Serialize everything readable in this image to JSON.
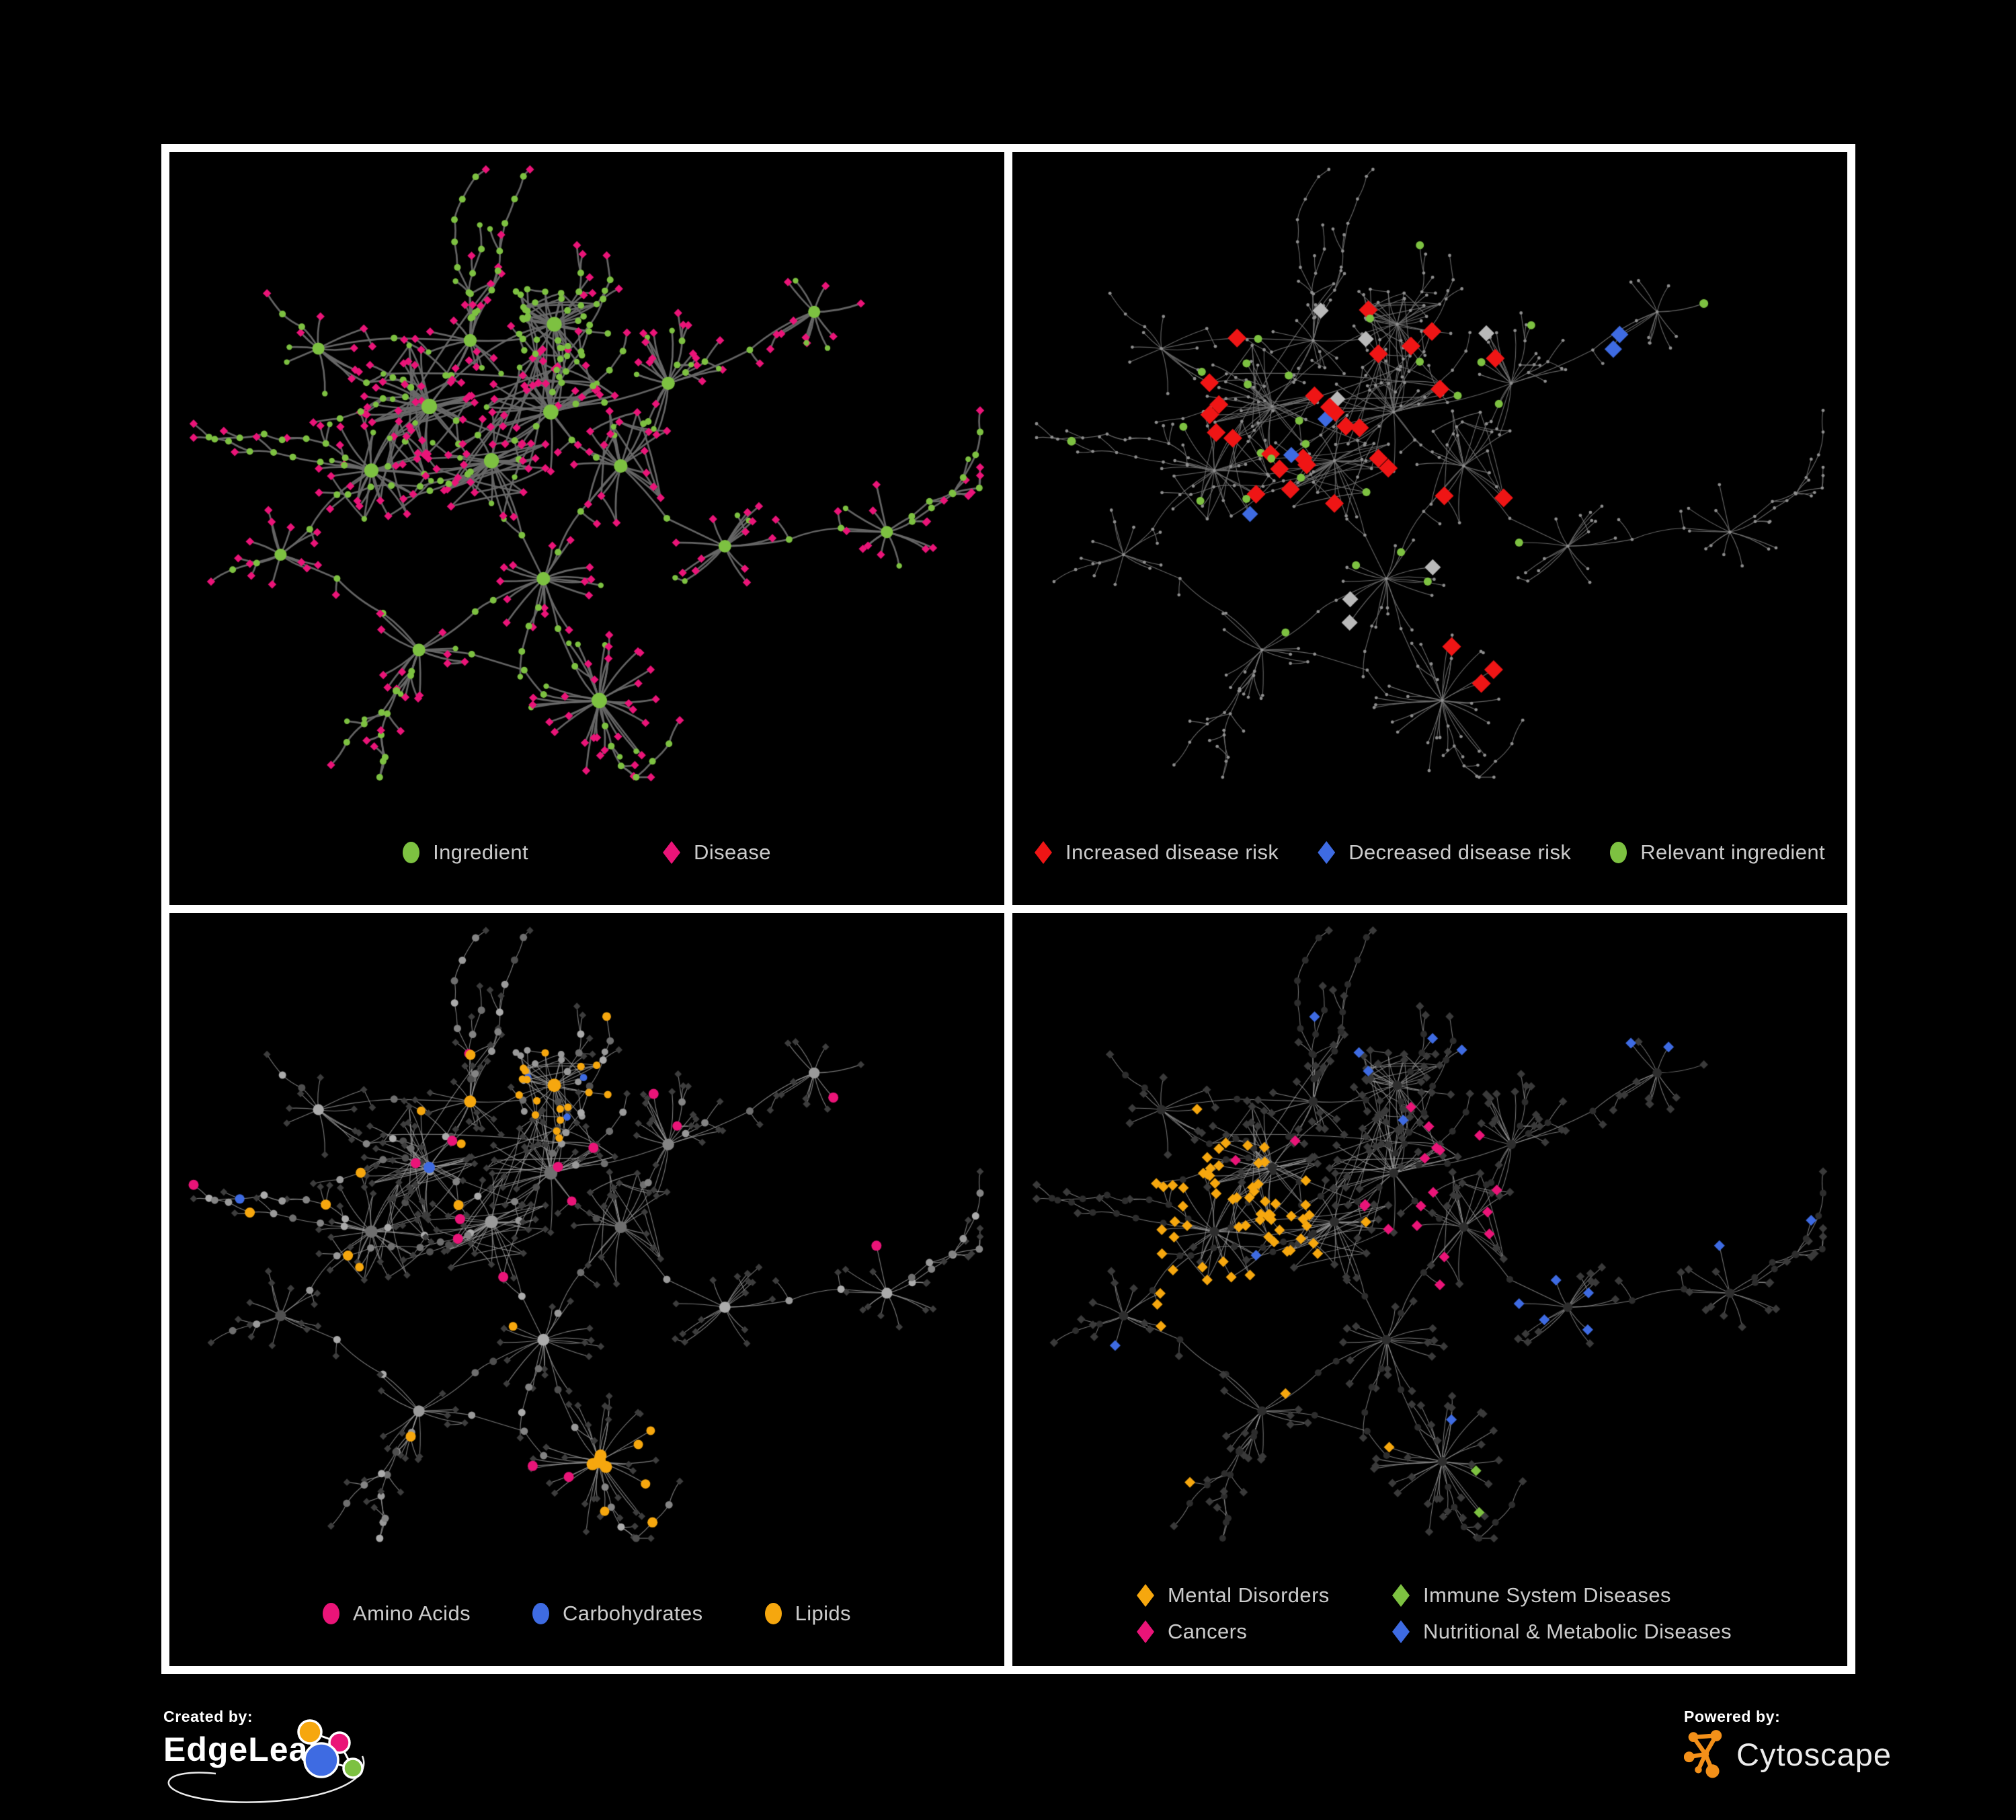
{
  "canvas": {
    "background": "#000000",
    "frame_color": "#ffffff"
  },
  "footer": {
    "created_by": "Created by:",
    "brand_left": "EdgeLeap",
    "powered_by": "Powered by:",
    "brand_right": "Cytoscape",
    "cytoscape_orange": "#f39019",
    "edgeleap_glyph_colors": {
      "amber": "#f6a70e",
      "pink": "#ea1478",
      "blue": "#3e6be2",
      "green": "#7dc141"
    }
  },
  "panels": [
    {
      "id": "ingredient-disease",
      "legend": [
        {
          "label": "Ingredient",
          "color": "#7dc141",
          "shape": "ellipse"
        },
        {
          "label": "Disease",
          "color": "#ea1478",
          "shape": "diamond"
        }
      ]
    },
    {
      "id": "disease-risk",
      "legend": [
        {
          "label": "Increased disease risk",
          "color": "#ef1515",
          "shape": "diamond"
        },
        {
          "label": "Decreased disease risk",
          "color": "#3e6be2",
          "shape": "diamond"
        },
        {
          "label": "Relevant ingredient",
          "color": "#7dc141",
          "shape": "ellipse"
        }
      ]
    },
    {
      "id": "chemical-classes",
      "legend": [
        {
          "label": "Amino Acids",
          "color": "#ea1478",
          "shape": "ellipse"
        },
        {
          "label": "Carbohydrates",
          "color": "#3e6be2",
          "shape": "ellipse"
        },
        {
          "label": "Lipids",
          "color": "#f6a70e",
          "shape": "ellipse"
        }
      ]
    },
    {
      "id": "disease-categories",
      "legend": [
        {
          "label": "Mental Disorders",
          "color": "#f6a70e",
          "shape": "diamond"
        },
        {
          "label": "Immune System Diseases",
          "color": "#7dc141",
          "shape": "diamond"
        },
        {
          "label": "Cancers",
          "color": "#ea1478",
          "shape": "diamond"
        },
        {
          "label": "Nutritional & Metabolic Diseases",
          "color": "#3e6be2",
          "shape": "diamond"
        }
      ]
    }
  ],
  "chart_data": [
    {
      "type": "network",
      "panel": "top-left",
      "name": "ingredient-disease network",
      "categories": [
        {
          "label": "Ingredient",
          "color": "#7dc141",
          "shape": "circle",
          "count_estimate": 165
        },
        {
          "label": "Disease",
          "color": "#ea1478",
          "shape": "diamond",
          "count_estimate": 420
        }
      ],
      "edge_color": "#696969",
      "background": "#000000"
    },
    {
      "type": "network",
      "panel": "top-right",
      "name": "disease risk overlay",
      "categories": [
        {
          "label": "Increased disease risk",
          "color": "#ef1515",
          "shape": "diamond",
          "count_estimate": 33
        },
        {
          "label": "Decreased disease risk",
          "color": "#3e6be2",
          "shape": "diamond",
          "count_estimate": 5
        },
        {
          "label": "Relevant ingredient",
          "color": "#7dc141",
          "shape": "circle",
          "count_estimate": 27
        }
      ],
      "unlabeled_gray_diamonds": {
        "color": "#b9b9b9",
        "count_estimate": 7
      },
      "base_node_color": "#8e8e8e",
      "edge_color": "#6f6f6f",
      "background": "#000000"
    },
    {
      "type": "network",
      "panel": "bottom-left",
      "name": "chemical classes overlay",
      "categories": [
        {
          "label": "Amino Acids",
          "color": "#ea1478",
          "shape": "circle",
          "count_estimate": 16
        },
        {
          "label": "Carbohydrates",
          "color": "#3e6be2",
          "shape": "circle",
          "count_estimate": 14
        },
        {
          "label": "Lipids",
          "color": "#f6a70e",
          "shape": "circle",
          "count_estimate": 48
        }
      ],
      "base_node_colors": [
        "#9a9a9a",
        "#848484",
        "#ababab",
        "#6f6f6f",
        "#4f4f4f"
      ],
      "disease_diamond_color": "#3d3d3d",
      "edge_color": "#9b9b9b",
      "background": "#000000"
    },
    {
      "type": "network",
      "panel": "bottom-right",
      "name": "disease categories overlay",
      "categories": [
        {
          "label": "Mental Disorders",
          "color": "#f6a70e",
          "shape": "diamond",
          "count_estimate": 75
        },
        {
          "label": "Immune System Diseases",
          "color": "#7dc141",
          "shape": "diamond",
          "count_estimate": 8
        },
        {
          "label": "Cancers",
          "color": "#ea1478",
          "shape": "diamond",
          "count_estimate": 45
        },
        {
          "label": "Nutritional & Metabolic Diseases",
          "color": "#3e6be2",
          "shape": "diamond",
          "count_estimate": 60
        }
      ],
      "base_diamond_color": "#3a3a3a",
      "base_circle_color": "#2d2d2d",
      "edge_color": "#969696",
      "background": "#000000"
    },
    {
      "layout": {
        "shared_layout": true,
        "style": "organic force-directed, curved edges",
        "seed": 20240,
        "node_total_estimate": 580
      }
    }
  ]
}
